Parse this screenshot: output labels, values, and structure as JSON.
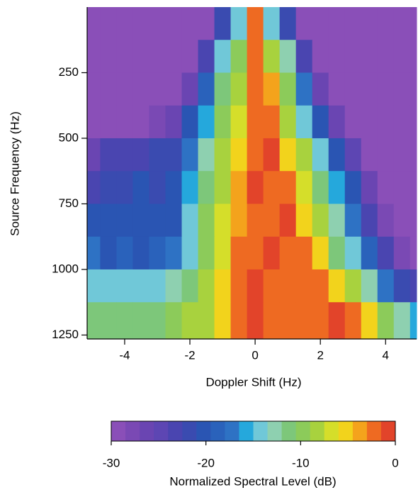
{
  "chart_data": {
    "type": "heatmap",
    "xlabel": "Doppler Shift (Hz)",
    "ylabel": "Source Frequency (Hz)",
    "xlim": [
      -5.15,
      4.95
    ],
    "ylim": [
      0,
      1265
    ],
    "xticks": [
      -4,
      -2,
      0,
      2,
      4
    ],
    "yticks": [
      250,
      500,
      750,
      1000,
      1250
    ],
    "xbins": [
      -5.15,
      -4.75,
      -4.25,
      -3.75,
      -3.25,
      -2.75,
      -2.25,
      -1.75,
      -1.25,
      -0.75,
      -0.25,
      0.25,
      0.75,
      1.25,
      1.75,
      2.25,
      2.75,
      3.25,
      3.75,
      4.25,
      4.75,
      4.95
    ],
    "ybins": [
      0,
      125,
      250,
      375,
      500,
      625,
      750,
      875,
      1000,
      1125,
      1265
    ],
    "z": [
      [
        -30,
        -30,
        -30,
        -30,
        -30,
        -30,
        -30,
        -30,
        -22,
        -14,
        -2,
        -14,
        -22,
        -30,
        -30,
        -30,
        -30,
        -30,
        -30,
        -30,
        -30
      ],
      [
        -30,
        -30,
        -30,
        -30,
        -30,
        -30,
        -30,
        -24,
        -14,
        -10,
        -2,
        -9,
        -13,
        -24,
        -30,
        -30,
        -30,
        -30,
        -30,
        -30,
        -30
      ],
      [
        -30,
        -30,
        -30,
        -30,
        -30,
        -30,
        -26,
        -19,
        -11,
        -8,
        -2,
        -4,
        -10,
        -18,
        -26,
        -30,
        -30,
        -30,
        -30,
        -30,
        -30
      ],
      [
        -30,
        -30,
        -30,
        -30,
        -28,
        -26,
        -21,
        -16,
        -10,
        -7,
        -3,
        -2,
        -8,
        -14,
        -20,
        -27,
        -30,
        -30,
        -30,
        -30,
        -30
      ],
      [
        -26,
        -24,
        -24,
        -24,
        -22,
        -22,
        -18,
        -13,
        -9,
        -6,
        -3,
        -1,
        -5,
        -9,
        -14,
        -20,
        -25,
        -30,
        -30,
        -30,
        -30
      ],
      [
        -24,
        -22,
        -22,
        -21,
        -22,
        -21,
        -16,
        -11,
        -8,
        -4,
        -1,
        -3,
        -2,
        -7,
        -11,
        -16,
        -21,
        -27,
        -30,
        -30,
        -30
      ],
      [
        -20,
        -21,
        -20,
        -20,
        -21,
        -20,
        -15,
        -10,
        -7,
        -4,
        -2,
        -2,
        -1,
        -5,
        -9,
        -13,
        -18,
        -23,
        -28,
        -30,
        -30
      ],
      [
        -18,
        -20,
        -19,
        -20,
        -19,
        -18,
        -14,
        -10,
        -7,
        -3,
        -2,
        -1,
        -2,
        -3,
        -6,
        -11,
        -15,
        -19,
        -24,
        -28,
        -30
      ],
      [
        -14,
        -15,
        -14,
        -14,
        -14,
        -13,
        -11,
        -9,
        -6,
        -3,
        -1,
        -2,
        -2,
        -2,
        -2,
        -6,
        -9,
        -13,
        -18,
        -22,
        -24
      ],
      [
        -12,
        -12,
        -12,
        -11,
        -11,
        -10,
        -9,
        -8,
        -5,
        -3,
        -1,
        -2,
        -3,
        -3,
        -2,
        -1,
        -3,
        -6,
        -10,
        -13,
        -16
      ]
    ],
    "colorbar": {
      "label": "Normalized Spectral Level (dB)",
      "clim": [
        -30,
        0
      ],
      "ticks": [
        -30,
        -20,
        -10,
        0
      ],
      "colors": [
        "#8a4fb8",
        "#7a49b4",
        "#6a45b2",
        "#5d46b3",
        "#4a45b0",
        "#3a4bb0",
        "#2a55b3",
        "#2a62bb",
        "#2e72c4",
        "#25a8dc",
        "#70c8d8",
        "#8ed0b0",
        "#7dc77a",
        "#8ccb5a",
        "#a8d23e",
        "#d5de2a",
        "#f2d31c",
        "#f4a31c",
        "#ee6a22",
        "#e2442a"
      ]
    }
  }
}
